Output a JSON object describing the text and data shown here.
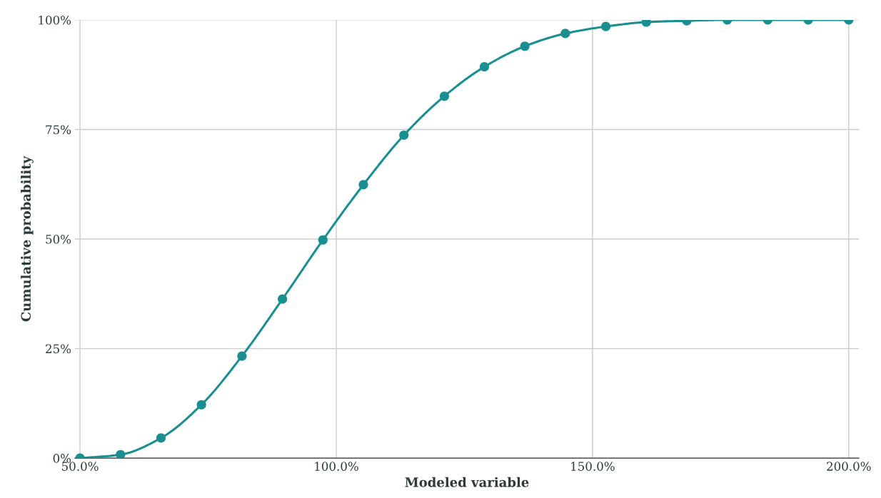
{
  "chart_data": {
    "type": "line",
    "xlabel": "Modeled variable",
    "ylabel": "Cumulative probability",
    "x": [
      50,
      57.9,
      65.8,
      73.7,
      81.6,
      89.5,
      97.4,
      105.3,
      113.2,
      121.1,
      128.9,
      136.8,
      144.7,
      152.6,
      160.5,
      168.4,
      176.3,
      184.2,
      192.1,
      200
    ],
    "series": [
      {
        "color": "#1a8f91",
        "values": [
          0,
          0.8,
          4.6,
          12.2,
          23.3,
          36.3,
          49.8,
          62.4,
          73.7,
          82.6,
          89.3,
          94.0,
          96.9,
          98.5,
          99.5,
          99.8,
          100,
          100,
          100,
          100
        ]
      }
    ],
    "marker": "circle",
    "line_style": "solid",
    "grid": true,
    "xlim": [
      49,
      202
    ],
    "ylim": [
      0,
      100
    ],
    "xticks": [
      {
        "value": 50,
        "label": "50.0%"
      },
      {
        "value": 100,
        "label": "100.0%"
      },
      {
        "value": 150,
        "label": "150.0%"
      },
      {
        "value": 200,
        "label": "200.0%"
      }
    ],
    "yticks": [
      {
        "value": 0,
        "label": "0%"
      },
      {
        "value": 25,
        "label": "25%"
      },
      {
        "value": 50,
        "label": "50%"
      },
      {
        "value": 75,
        "label": "75%"
      },
      {
        "value": 100,
        "label": "100%"
      }
    ]
  }
}
